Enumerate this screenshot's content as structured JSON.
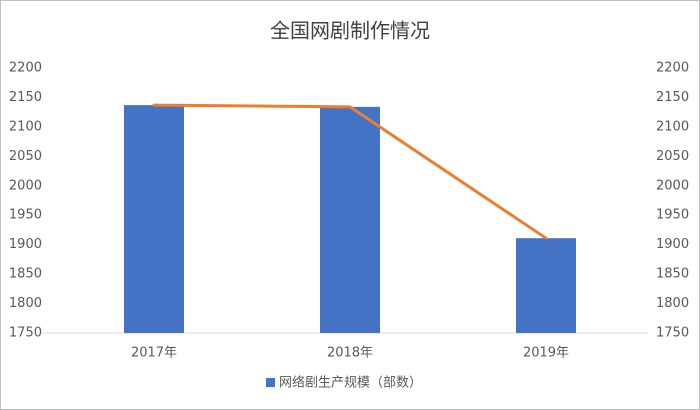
{
  "chart_data": {
    "type": "bar_line",
    "title": "全国网剧制作情况",
    "categories": [
      "2017年",
      "2018年",
      "2019年"
    ],
    "series": [
      {
        "type": "bar",
        "name": "网络剧生产规模（部数）",
        "color": "#4472c4",
        "values": [
          2137,
          2134,
          1911
        ]
      },
      {
        "type": "line",
        "color": "#ed7d31",
        "axis": "y2",
        "values": [
          2137,
          2134,
          1911
        ]
      }
    ],
    "ylim": [
      1750,
      2200
    ],
    "yticks": [
      1750,
      1800,
      1850,
      1900,
      1950,
      2000,
      2050,
      2100,
      2150,
      2200
    ],
    "y2lim": [
      1750,
      2200
    ],
    "y2ticks": [
      1750,
      1800,
      1850,
      1900,
      1950,
      2000,
      2050,
      2100,
      2150,
      2200
    ],
    "grid": false,
    "legend": "bottom"
  }
}
